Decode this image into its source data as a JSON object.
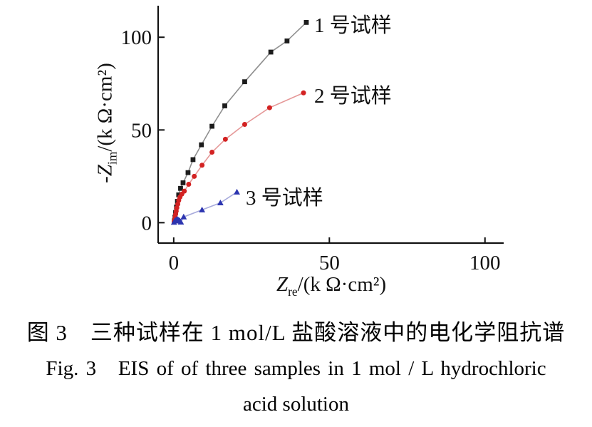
{
  "chart_data": {
    "type": "line",
    "title": "",
    "xlabel": "Zre/(kΩ·cm²)",
    "ylabel": "-Zim/(kΩ·cm²)",
    "xlabel_parts": {
      "sym": "Z",
      "sub": "re",
      "post": "/(k Ω·cm²)"
    },
    "ylabel_parts": {
      "pre": "-",
      "sym": "Z",
      "sub": "im",
      "post": "/(k Ω·cm²)"
    },
    "xlim": [
      -5,
      106
    ],
    "ylim": [
      -11,
      117
    ],
    "xticks": [
      0,
      50,
      100
    ],
    "yticks": [
      0,
      50,
      100
    ],
    "grid": false,
    "legend_position": "inline-annotations",
    "axis_color": "#111111",
    "series": [
      {
        "name": "sample-1",
        "label": "1 号试样",
        "marker": "square",
        "marker_color": "#1c1c1c",
        "line_color": "#8f8f8f",
        "points": [
          [
            0.2,
            1
          ],
          [
            0.4,
            3
          ],
          [
            0.6,
            5.5
          ],
          [
            0.9,
            8.5
          ],
          [
            1.2,
            11.5
          ],
          [
            1.6,
            15
          ],
          [
            2.2,
            18.5
          ],
          [
            3.0,
            21.5
          ],
          [
            4.6,
            27
          ],
          [
            6.2,
            34
          ],
          [
            8.9,
            42
          ],
          [
            12.3,
            52
          ],
          [
            16.4,
            63
          ],
          [
            22.8,
            76
          ],
          [
            31.2,
            92
          ],
          [
            36.4,
            98
          ],
          [
            42.6,
            108
          ]
        ]
      },
      {
        "name": "sample-2",
        "label": "2 号试样",
        "marker": "circle",
        "marker_color": "#d32222",
        "line_color": "#e59898",
        "points": [
          [
            0.15,
            0.5
          ],
          [
            0.3,
            1.6
          ],
          [
            0.45,
            3
          ],
          [
            0.6,
            4.5
          ],
          [
            0.8,
            6.2
          ],
          [
            1.0,
            8
          ],
          [
            1.3,
            10
          ],
          [
            1.6,
            12
          ],
          [
            2.0,
            13.8
          ],
          [
            2.6,
            15.4
          ],
          [
            3.4,
            17
          ],
          [
            4.8,
            20.7
          ],
          [
            6.6,
            25
          ],
          [
            9.1,
            31
          ],
          [
            12.3,
            38
          ],
          [
            16.6,
            45
          ],
          [
            22.8,
            53
          ],
          [
            30.8,
            62
          ],
          [
            41.7,
            70
          ]
        ]
      },
      {
        "name": "sample-3",
        "label": "3 号试样",
        "marker": "triangle",
        "marker_color": "#2c35b0",
        "line_color": "#a8abdc",
        "points": [
          [
            0.1,
            0.2
          ],
          [
            0.4,
            1.0
          ],
          [
            0.8,
            1.6
          ],
          [
            1.2,
            1.8
          ],
          [
            1.6,
            1.5
          ],
          [
            2.0,
            0.9
          ],
          [
            2.3,
            0.3
          ],
          [
            3.2,
            3.1
          ],
          [
            9.1,
            6.9
          ],
          [
            15.0,
            10.7
          ],
          [
            20.3,
            16.5
          ]
        ]
      }
    ]
  },
  "captions": {
    "cn": "图 3　三种试样在 1 mol/L 盐酸溶液中的电化学阻抗谱",
    "en_line1": "Fig. 3   EIS of of three samples in 1 mol / L hydrochloric",
    "en_line2": "acid solution"
  }
}
